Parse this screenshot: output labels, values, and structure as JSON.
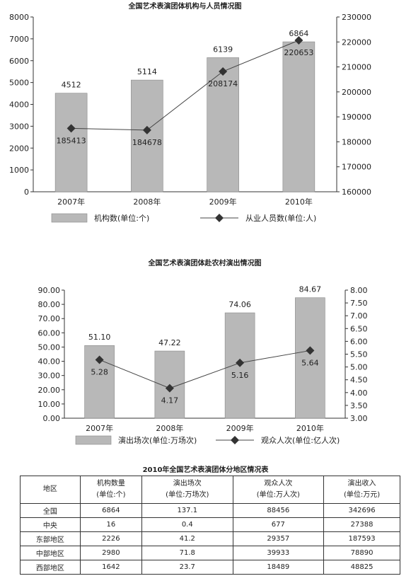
{
  "chart_data": [
    {
      "type": "bar",
      "title": "全国艺术表演团体机构与人员情况图",
      "categories": [
        "2007年",
        "2008年",
        "2009年",
        "2010年"
      ],
      "series": [
        {
          "name": "机构数(单位:个)",
          "type": "bar",
          "axis": "left",
          "values": [
            4512,
            5114,
            6139,
            6864
          ]
        },
        {
          "name": "从业人员数(单位:人)",
          "type": "line",
          "axis": "right",
          "values": [
            185413,
            184678,
            208174,
            220653
          ]
        }
      ],
      "ylim_left": [
        0,
        8000
      ],
      "yticks_left": [
        "0",
        "1000",
        "2000",
        "3000",
        "4000",
        "5000",
        "6000",
        "7000",
        "8000"
      ],
      "ylim_right": [
        160000,
        230000
      ],
      "yticks_right": [
        "160000",
        "170000",
        "180000",
        "190000",
        "200000",
        "210000",
        "220000",
        "230000"
      ],
      "legend_position": "bottom",
      "colors": {
        "bar": "#b8b8b8",
        "line": "#444444",
        "marker": "#333333"
      }
    },
    {
      "type": "bar",
      "title": "全国艺术表演团体赴农村演出情况图",
      "categories": [
        "2007年",
        "2008年",
        "2009年",
        "2010年"
      ],
      "series": [
        {
          "name": "演出场次(单位:万场次)",
          "type": "bar",
          "axis": "left",
          "values": [
            51.1,
            47.22,
            74.06,
            84.67
          ],
          "labels": [
            "51.10",
            "47.22",
            "74.06",
            "84.67"
          ]
        },
        {
          "name": "观众人次(单位:亿人次)",
          "type": "line",
          "axis": "right",
          "values": [
            5.28,
            4.17,
            5.16,
            5.64
          ],
          "labels": [
            "5.28",
            "4.17",
            "5.16",
            "5.64"
          ]
        }
      ],
      "ylim_left": [
        0,
        90
      ],
      "yticks_left": [
        "0.00",
        "10.00",
        "20.00",
        "30.00",
        "40.00",
        "50.00",
        "60.00",
        "70.00",
        "80.00",
        "90.00"
      ],
      "ylim_right": [
        3.0,
        8.0
      ],
      "yticks_right": [
        "3.00",
        "3.50",
        "4.00",
        "4.50",
        "5.00",
        "5.50",
        "6.00",
        "6.50",
        "7.00",
        "7.50",
        "8.00"
      ],
      "legend_position": "bottom",
      "colors": {
        "bar": "#b8b8b8",
        "line": "#444444",
        "marker": "#333333"
      }
    },
    {
      "type": "table",
      "title": "2010年全国艺术表演团体分地区情况表",
      "headers": [
        {
          "line1": "地区",
          "line2": ""
        },
        {
          "line1": "机构数量",
          "line2": "(单位:个)"
        },
        {
          "line1": "演出场次",
          "line2": "(单位:万场次)"
        },
        {
          "line1": "观众人次",
          "line2": "(单位:万人次)"
        },
        {
          "line1": "演出收入",
          "line2": "(单位:万元)"
        }
      ],
      "rows": [
        [
          "全国",
          "6864",
          "137.1",
          "88456",
          "342696"
        ],
        [
          "中央",
          "16",
          "0.4",
          "677",
          "27388"
        ],
        [
          "东部地区",
          "2226",
          "41.2",
          "29357",
          "187593"
        ],
        [
          "中部地区",
          "2980",
          "71.8",
          "39933",
          "78890"
        ],
        [
          "西部地区",
          "1642",
          "23.7",
          "18489",
          "48825"
        ]
      ]
    }
  ]
}
